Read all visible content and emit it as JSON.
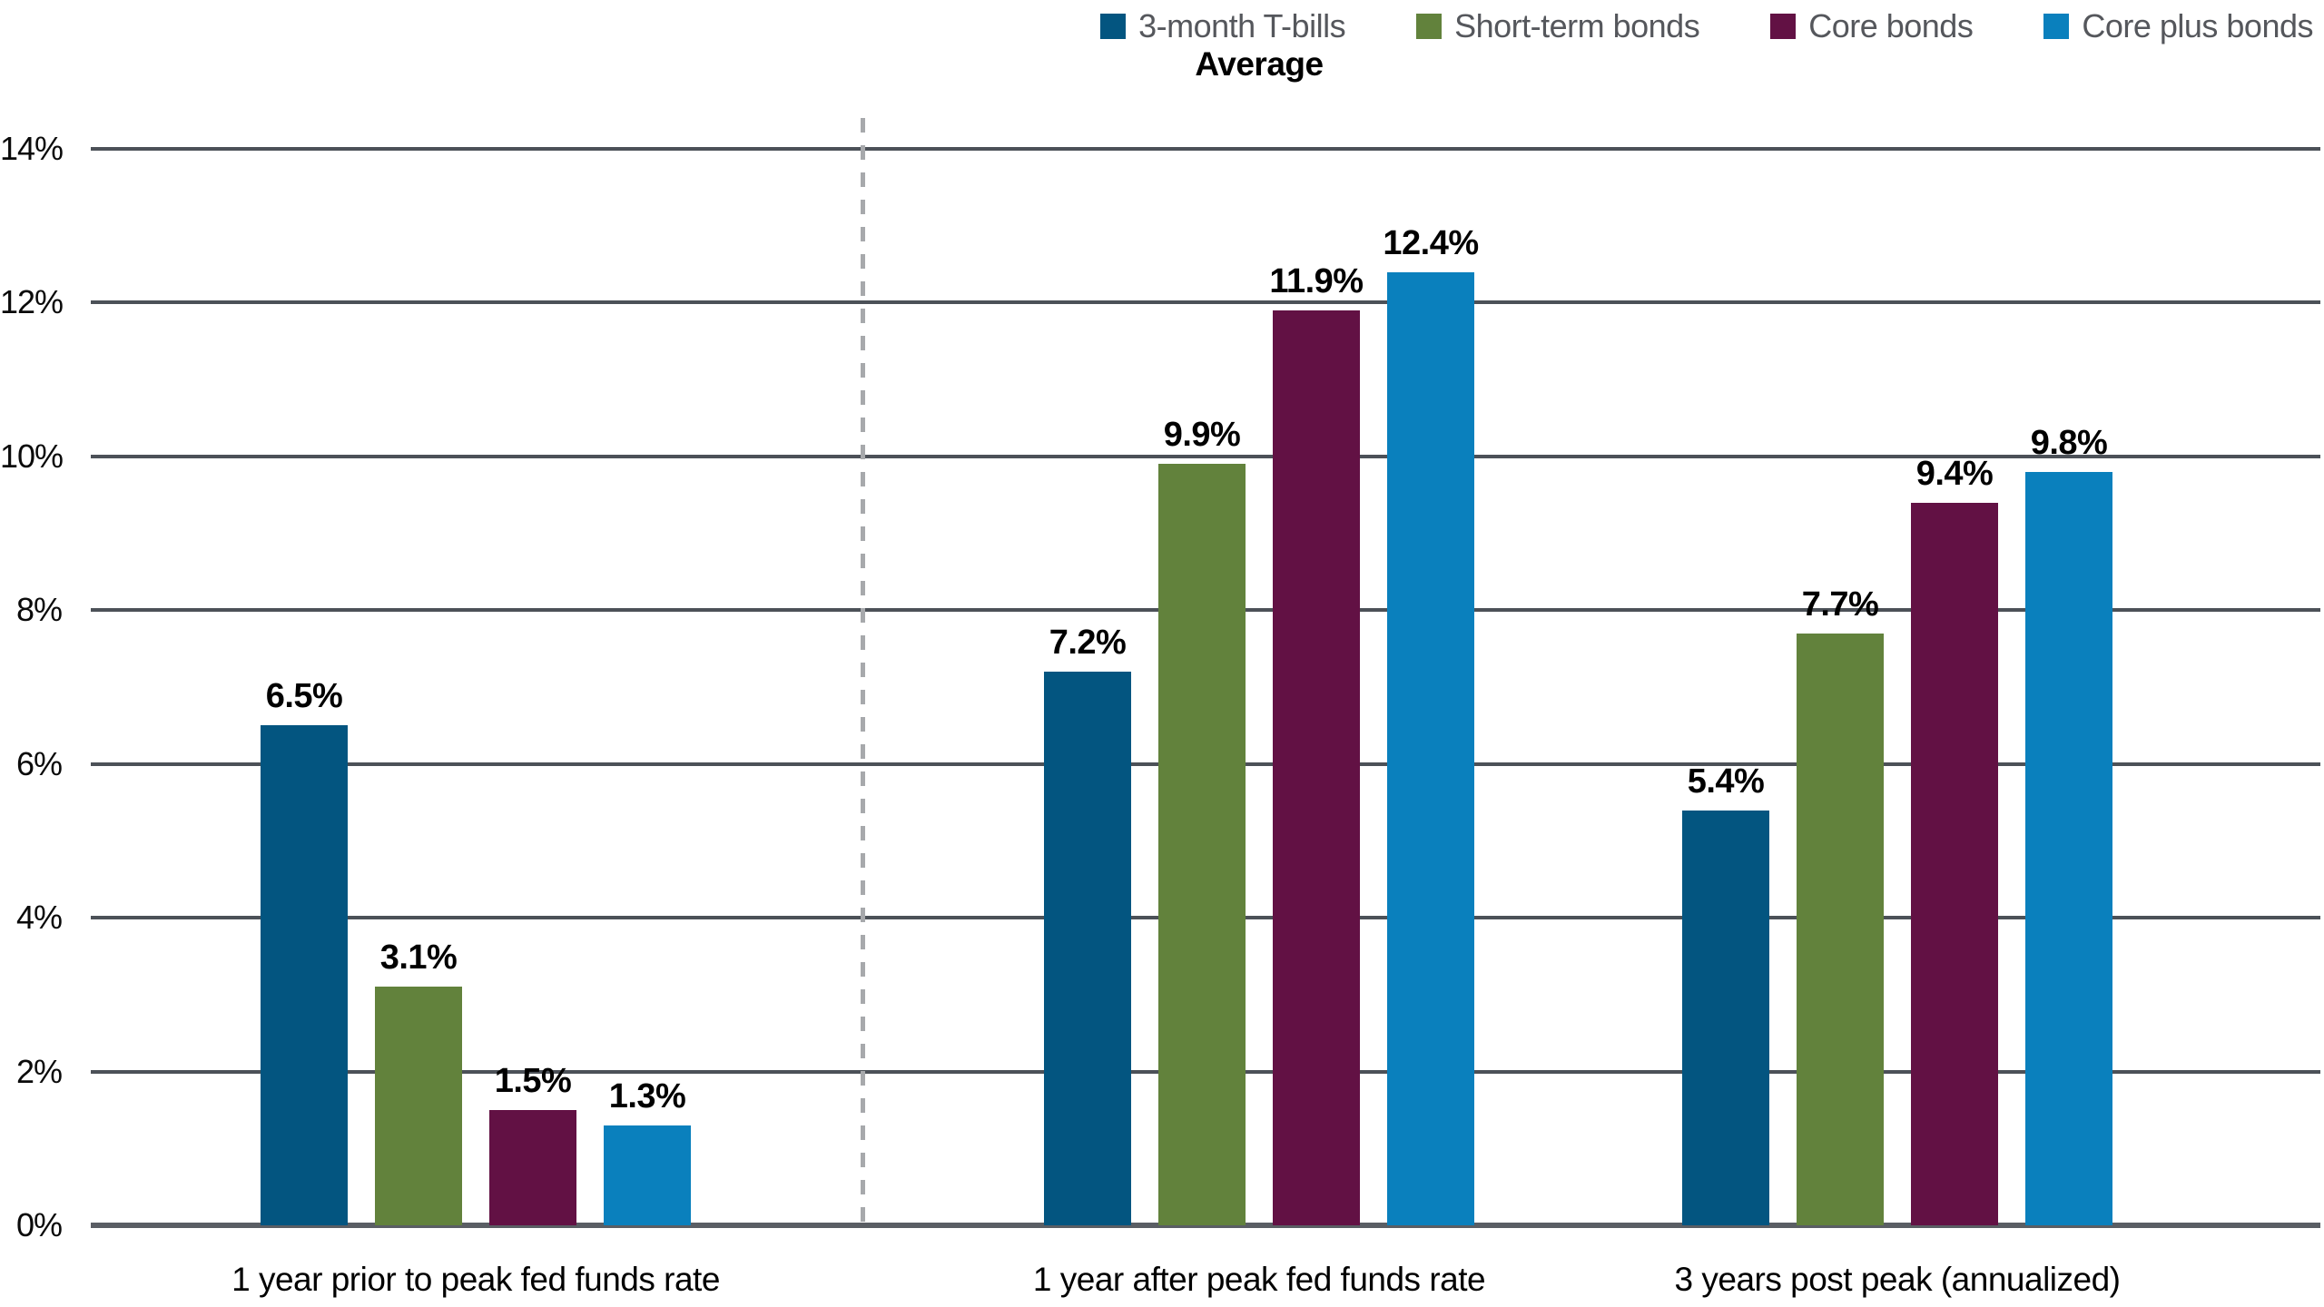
{
  "chart_data": {
    "type": "bar",
    "title": "Average",
    "categories": [
      "1 year prior to peak fed funds rate",
      "1 year after peak fed funds rate",
      "3 years post peak (annualized)"
    ],
    "series": [
      {
        "name": "3-month T-bills",
        "color": "#035580",
        "values": [
          6.5,
          7.2,
          5.4
        ],
        "labels": [
          "6.5%",
          "7.2%",
          "5.4%"
        ]
      },
      {
        "name": "Short-term bonds",
        "color": "#62823C",
        "values": [
          3.1,
          9.9,
          7.7
        ],
        "labels": [
          "3.1%",
          "9.9%",
          "7.7%"
        ]
      },
      {
        "name": "Core bonds",
        "color": "#621144",
        "values": [
          1.5,
          11.9,
          9.4
        ],
        "labels": [
          "1.5%",
          "11.9%",
          "9.4%"
        ]
      },
      {
        "name": "Core plus bonds",
        "color": "#0A80BD",
        "values": [
          1.3,
          12.4,
          9.8
        ],
        "labels": [
          "1.3%",
          "12.4%",
          "9.8%"
        ]
      }
    ],
    "ylim": [
      0,
      14
    ],
    "ytick_step": 2,
    "ytick_labels": [
      "0%",
      "2%",
      "4%",
      "6%",
      "8%",
      "10%",
      "12%",
      "14%"
    ],
    "grid": true,
    "legend_position": "top-right",
    "separator": {
      "after_category_index": 0,
      "style": "dashed",
      "color": "#A7A9AC"
    },
    "axis": {
      "gridline_color": "#4C5158",
      "baseline_color": "#5A5E64",
      "tick_label_color": "#0A0A0A",
      "legend_text_color": "#55575C"
    }
  }
}
